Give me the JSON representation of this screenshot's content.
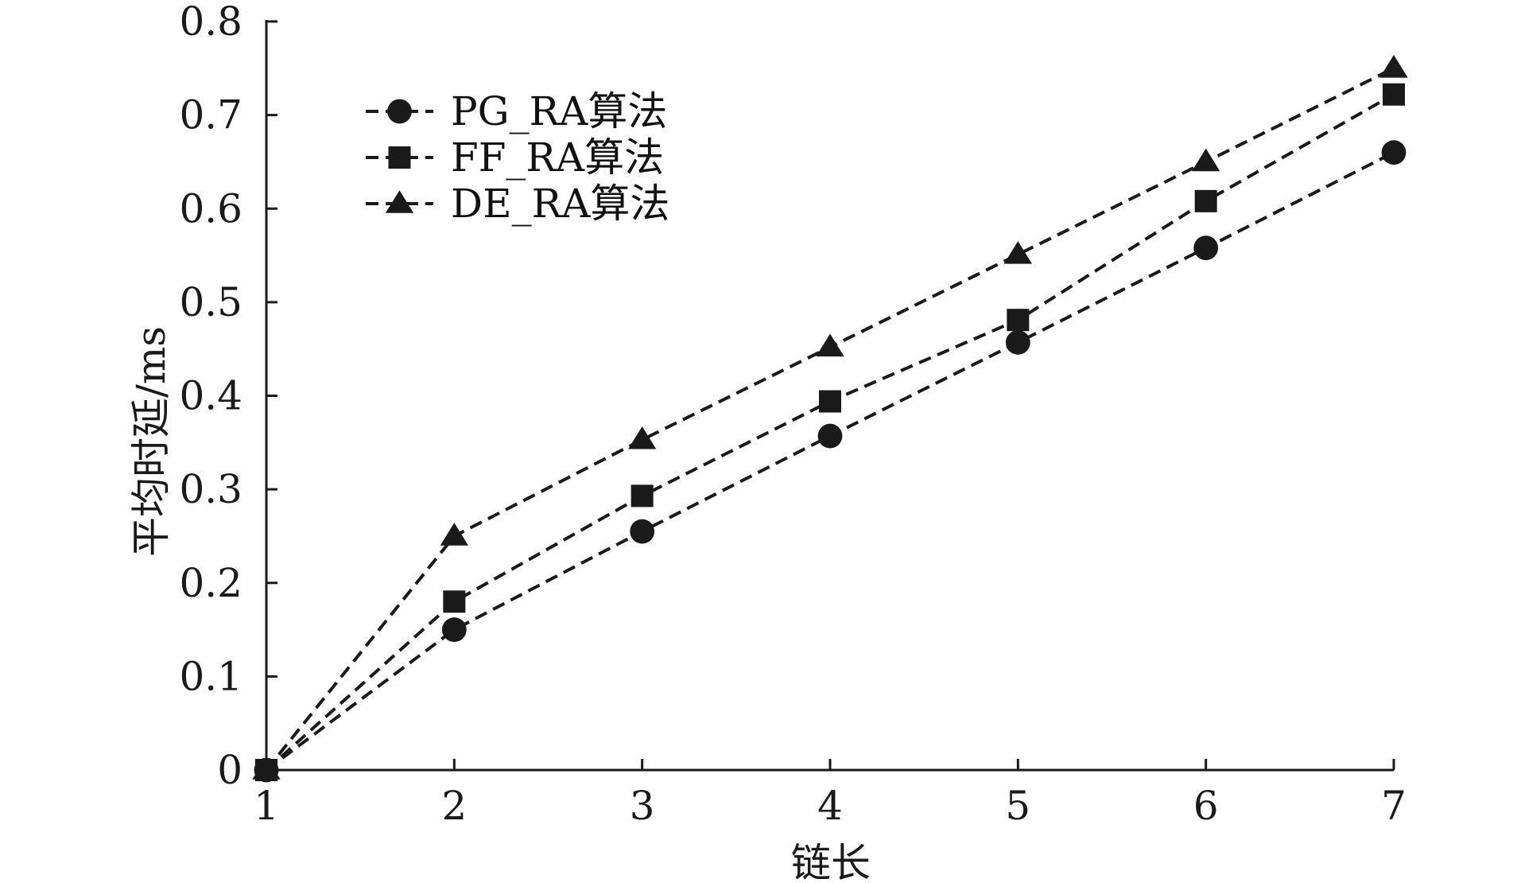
{
  "chart_data": {
    "type": "line",
    "title": "",
    "xlabel": "链长",
    "ylabel": "平均时延/ms",
    "x": [
      1,
      2,
      3,
      4,
      5,
      6,
      7
    ],
    "xlim": [
      1,
      7
    ],
    "ylim": [
      0,
      0.8
    ],
    "xticks": [
      "1",
      "2",
      "3",
      "4",
      "5",
      "6",
      "7"
    ],
    "yticks": [
      "0",
      "0.1",
      "0.2",
      "0.3",
      "0.4",
      "0.5",
      "0.6",
      "0.7",
      "0.8"
    ],
    "grid": false,
    "legend_position": "top-left",
    "line_style": "dashed",
    "line_color": "#1a1a1a",
    "series": [
      {
        "name": "PG_RA算法",
        "marker": "circle",
        "values": [
          0,
          0.15,
          0.255,
          0.357,
          0.457,
          0.558,
          0.66
        ]
      },
      {
        "name": "FF_RA算法",
        "marker": "square",
        "values": [
          0,
          0.18,
          0.293,
          0.394,
          0.481,
          0.608,
          0.722
        ]
      },
      {
        "name": "DE_RA算法",
        "marker": "triangle",
        "values": [
          0,
          0.25,
          0.353,
          0.452,
          0.551,
          0.65,
          0.75
        ]
      }
    ]
  }
}
